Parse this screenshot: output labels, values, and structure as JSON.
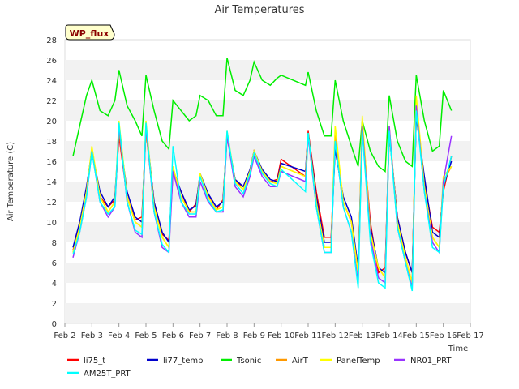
{
  "chart_data": {
    "type": "line",
    "title": "Air Temperatures",
    "xlabel": "Time",
    "ylabel": "Air Temperature (C)",
    "site_badge": "WP_flux",
    "xlim": [
      2,
      17
    ],
    "ylim": [
      0,
      28
    ],
    "x_ticks": [
      2,
      3,
      4,
      5,
      6,
      7,
      8,
      9,
      10,
      11,
      12,
      13,
      14,
      15,
      16,
      17
    ],
    "x_tick_labels": [
      "Feb 2",
      "Feb 3",
      "Feb 4",
      "Feb 5",
      "Feb 6",
      "Feb 7",
      "Feb 8",
      "Feb 9",
      "Feb 10",
      "Feb 11",
      "Feb 12",
      "Feb 13",
      "Feb 14",
      "Feb 15",
      "Feb 16",
      "Feb 17"
    ],
    "y_ticks": [
      0,
      2,
      4,
      6,
      8,
      10,
      12,
      14,
      16,
      18,
      20,
      22,
      24,
      26,
      28
    ],
    "y_tick_labels": [
      "0",
      "2",
      "4",
      "6",
      "8",
      "10",
      "12",
      "14",
      "16",
      "18",
      "20",
      "22",
      "24",
      "26",
      "28"
    ],
    "grid": "horizontal bands",
    "legend_position": "bottom",
    "x": [
      2.3,
      2.55,
      2.8,
      3.0,
      3.3,
      3.6,
      3.85,
      4.0,
      4.3,
      4.6,
      4.85,
      5.0,
      5.3,
      5.6,
      5.85,
      6.0,
      6.3,
      6.6,
      6.85,
      7.0,
      7.3,
      7.6,
      7.85,
      8.0,
      8.3,
      8.6,
      8.85,
      9.0,
      9.3,
      9.6,
      9.85,
      10.0,
      10.9,
      11.0,
      11.3,
      11.6,
      11.85,
      12.0,
      12.3,
      12.6,
      12.85,
      13.0,
      13.3,
      13.6,
      13.85,
      14.0,
      14.3,
      14.6,
      14.85,
      15.0,
      15.3,
      15.6,
      15.85,
      16.0,
      16.3
    ],
    "series": [
      {
        "name": "li75_t",
        "color": "#ff0000",
        "values": [
          7.2,
          9.5,
          13.2,
          17.0,
          12.5,
          11.5,
          12.2,
          18.5,
          12.5,
          10.2,
          10.5,
          19.0,
          12.0,
          8.8,
          8.2,
          15.0,
          13.0,
          11.0,
          11.8,
          14.5,
          12.6,
          11.2,
          12.2,
          18.5,
          14.0,
          13.5,
          15.0,
          17.0,
          15.0,
          14.0,
          14.2,
          16.2,
          14.5,
          19.0,
          13.0,
          8.5,
          8.5,
          17.5,
          12.0,
          10.0,
          5.5,
          19.5,
          10.0,
          5.0,
          5.5,
          19.0,
          10.5,
          7.0,
          5.0,
          20.5,
          14.0,
          9.5,
          9.0,
          13.0,
          16.5
        ]
      },
      {
        "name": "li77_temp",
        "color": "#0000cc",
        "values": [
          7.5,
          10.0,
          13.5,
          17.0,
          13.0,
          11.5,
          12.5,
          19.0,
          13.0,
          10.5,
          10.0,
          19.5,
          12.0,
          9.0,
          8.0,
          15.2,
          13.0,
          11.2,
          11.6,
          14.8,
          12.8,
          11.5,
          12.0,
          18.6,
          14.2,
          13.5,
          15.2,
          17.0,
          15.2,
          14.2,
          14.0,
          15.8,
          15.0,
          18.8,
          12.5,
          8.0,
          8.0,
          17.2,
          12.5,
          10.5,
          5.5,
          19.0,
          9.5,
          5.5,
          5.0,
          18.8,
          10.5,
          7.0,
          5.0,
          20.5,
          14.5,
          9.0,
          8.5,
          13.5,
          16.0
        ]
      },
      {
        "name": "Tsonic",
        "color": "#00ee00",
        "values": [
          16.5,
          19.5,
          22.5,
          24.0,
          21.0,
          20.5,
          22.0,
          25.0,
          21.5,
          20.0,
          18.5,
          24.5,
          21.0,
          18.0,
          17.2,
          22.0,
          21.0,
          20.0,
          20.5,
          22.5,
          22.0,
          20.5,
          20.5,
          26.2,
          23.0,
          22.5,
          24.0,
          25.8,
          24.0,
          23.5,
          24.2,
          24.5,
          23.5,
          24.8,
          21.0,
          18.5,
          18.5,
          24.0,
          20.0,
          17.5,
          15.5,
          20.0,
          17.0,
          15.5,
          15.0,
          22.5,
          18.0,
          16.0,
          15.5,
          24.5,
          20.0,
          17.0,
          17.5,
          23.0,
          21.0
        ]
      },
      {
        "name": "AirT",
        "color": "#ff9900",
        "values": [
          7.0,
          9.5,
          13.0,
          17.0,
          12.5,
          11.0,
          12.0,
          19.0,
          12.5,
          10.0,
          9.5,
          19.0,
          11.5,
          8.5,
          7.5,
          15.0,
          12.5,
          11.0,
          11.0,
          14.5,
          12.5,
          11.2,
          11.5,
          18.5,
          14.0,
          13.2,
          15.0,
          16.8,
          15.0,
          14.0,
          13.8,
          15.5,
          14.5,
          18.5,
          12.0,
          7.5,
          7.5,
          18.8,
          12.0,
          10.0,
          5.0,
          20.0,
          9.0,
          5.5,
          4.5,
          19.0,
          10.0,
          6.5,
          4.0,
          22.0,
          13.5,
          8.5,
          7.5,
          14.0,
          15.5
        ]
      },
      {
        "name": "PanelTemp",
        "color": "#ffff00",
        "values": [
          7.0,
          9.5,
          13.0,
          17.5,
          12.5,
          11.0,
          12.0,
          20.0,
          12.5,
          10.0,
          9.5,
          20.0,
          11.5,
          8.5,
          7.5,
          15.5,
          12.5,
          11.0,
          11.0,
          14.8,
          12.5,
          11.2,
          11.5,
          19.0,
          14.0,
          13.2,
          15.0,
          17.0,
          15.0,
          14.0,
          13.8,
          15.5,
          14.5,
          18.8,
          12.0,
          7.5,
          7.5,
          19.5,
          12.0,
          10.0,
          5.0,
          20.5,
          9.0,
          5.5,
          4.5,
          19.5,
          10.0,
          6.5,
          4.0,
          22.5,
          13.5,
          8.5,
          7.5,
          14.5,
          15.5
        ]
      },
      {
        "name": "NR01_PRT",
        "color": "#9933ff",
        "values": [
          6.5,
          9.0,
          12.5,
          17.0,
          12.0,
          10.5,
          11.5,
          19.5,
          12.0,
          9.0,
          8.5,
          19.5,
          11.0,
          7.5,
          7.0,
          15.0,
          12.0,
          10.5,
          10.5,
          14.0,
          12.0,
          11.0,
          11.0,
          18.5,
          13.5,
          12.5,
          14.5,
          16.5,
          14.5,
          13.5,
          13.5,
          15.0,
          14.0,
          18.5,
          11.5,
          7.0,
          7.0,
          18.0,
          11.5,
          9.0,
          4.0,
          19.5,
          8.5,
          4.5,
          4.0,
          19.5,
          9.5,
          6.0,
          3.5,
          21.5,
          13.0,
          8.0,
          7.0,
          14.0,
          18.5
        ]
      },
      {
        "name": "AM25T_PRT",
        "color": "#00ffff",
        "values": [
          6.8,
          9.0,
          12.5,
          17.0,
          12.0,
          10.8,
          11.5,
          19.8,
          12.0,
          9.2,
          8.8,
          19.8,
          11.0,
          7.8,
          7.0,
          17.5,
          12.0,
          10.8,
          10.8,
          14.5,
          12.2,
          11.0,
          11.2,
          19.0,
          13.8,
          12.8,
          14.8,
          16.8,
          14.8,
          13.8,
          13.5,
          15.2,
          13.0,
          18.8,
          11.5,
          7.0,
          7.0,
          18.0,
          11.5,
          9.0,
          3.5,
          19.0,
          8.0,
          4.0,
          3.5,
          19.0,
          9.5,
          6.0,
          3.2,
          21.0,
          13.0,
          7.5,
          7.0,
          13.5,
          16.5
        ]
      }
    ]
  }
}
